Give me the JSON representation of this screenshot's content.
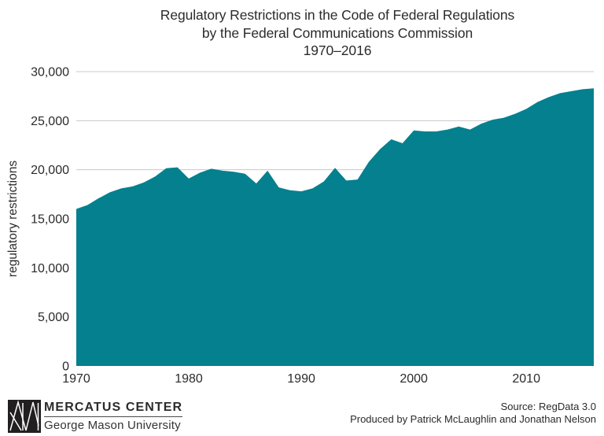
{
  "title": {
    "line1": "Regulatory Restrictions in the Code of Federal Regulations",
    "line2": "by the Federal Communications Commission",
    "line3": "1970–2016"
  },
  "chart_data": {
    "type": "area",
    "title": "Regulatory Restrictions in the Code of Federal Regulations by the Federal Communications Commission 1970–2016",
    "xlabel": "",
    "ylabel": "regulatory restrictions",
    "xlim": [
      1970,
      2016
    ],
    "ylim": [
      0,
      30000
    ],
    "grid": true,
    "legend": "none",
    "x": [
      1970,
      1971,
      1972,
      1973,
      1974,
      1975,
      1976,
      1977,
      1978,
      1979,
      1980,
      1981,
      1982,
      1983,
      1984,
      1985,
      1986,
      1987,
      1988,
      1989,
      1990,
      1991,
      1992,
      1993,
      1994,
      1995,
      1996,
      1997,
      1998,
      1999,
      2000,
      2001,
      2002,
      2003,
      2004,
      2005,
      2006,
      2007,
      2008,
      2009,
      2010,
      2011,
      2012,
      2013,
      2014,
      2015,
      2016
    ],
    "values": [
      16000,
      16400,
      17100,
      17700,
      18100,
      18300,
      18700,
      19300,
      20150,
      20250,
      19100,
      19700,
      20100,
      19900,
      19800,
      19600,
      18600,
      19900,
      18200,
      17900,
      17800,
      18100,
      18800,
      20200,
      18900,
      19000,
      20800,
      22100,
      23100,
      22700,
      24000,
      23900,
      23900,
      24100,
      24400,
      24100,
      24700,
      25100,
      25300,
      25700,
      26200,
      26900,
      27400,
      27800,
      28000,
      28200,
      28300
    ],
    "xticks": [
      1970,
      1980,
      1990,
      2000,
      2010
    ],
    "xtick_labels": [
      "1970",
      "1980",
      "1990",
      "2000",
      "2010"
    ],
    "yticks": [
      0,
      5000,
      10000,
      15000,
      20000,
      25000,
      30000
    ],
    "ytick_labels": [
      "0",
      "5,000",
      "10,000",
      "15,000",
      "20,000",
      "25,000",
      "30,000"
    ]
  },
  "colors": {
    "area_fill": "#04808E",
    "grid_line": "#c8c8c8",
    "text": "#2b2b2b"
  },
  "footer": {
    "logo_title": "MERCATUS CENTER",
    "logo_subtitle": "George Mason University",
    "source_line1": "Source: RegData 3.0",
    "source_line2": "Produced by Patrick McLaughlin and Jonathan Nelson"
  }
}
